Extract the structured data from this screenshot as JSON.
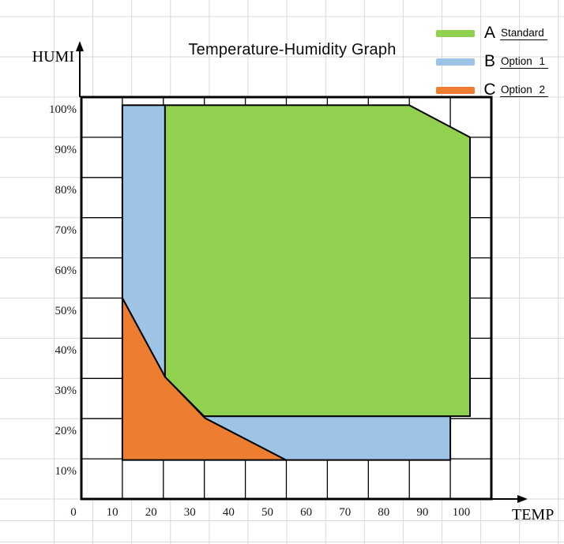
{
  "title": "Temperature-Humidity Graph",
  "axes": {
    "y_axis_name": "HUMI",
    "x_axis_name": "TEMP",
    "y_ticks": [
      "100%",
      "90%",
      "80%",
      "70%",
      "60%",
      "50%",
      "40%",
      "30%",
      "20%",
      "10%"
    ],
    "x_ticks": [
      "0",
      "10",
      "20",
      "30",
      "40",
      "50",
      "60",
      "70",
      "80",
      "90",
      "100"
    ]
  },
  "legend": {
    "items": [
      {
        "key": "A",
        "label": "Standard",
        "color": "#92D050"
      },
      {
        "key": "B",
        "label": "Option 1",
        "color": "#9DC3E6"
      },
      {
        "key": "C",
        "label": "Option 2",
        "color": "#ED7D31"
      }
    ]
  },
  "colors": {
    "region_a": "#92D050",
    "region_b": "#9DC3E6",
    "region_c": "#ED7D31",
    "grid_black": "#000000",
    "sheet_grid_gray": "#d9d9d9",
    "background": "#ffffff"
  },
  "chart_data": {
    "type": "area",
    "title": "Temperature-Humidity Graph",
    "xlabel": "TEMP",
    "ylabel": "HUMI",
    "xlim": [
      0,
      100
    ],
    "ylim": [
      0,
      100
    ],
    "x_tick_step": 10,
    "y_tick_step": 10,
    "y_tick_format": "percent",
    "grid": true,
    "legend_position": "top-right",
    "regions": [
      {
        "name": "B Option 1",
        "legend_key": "B",
        "color": "#9DC3E6",
        "polygons": [
          [
            [
              10,
              98
            ],
            [
              20.4,
              98
            ],
            [
              20.4,
              30.4
            ],
            [
              10,
              50
            ]
          ],
          [
            [
              20.4,
              30.4
            ],
            [
              29.9,
              20.6
            ],
            [
              90,
              20.6
            ],
            [
              90,
              9.7
            ],
            [
              49.9,
              9.7
            ],
            [
              30.2,
              20.1
            ]
          ]
        ]
      },
      {
        "name": "C Option 2",
        "legend_key": "C",
        "color": "#ED7D31",
        "polygons": [
          [
            [
              10,
              50
            ],
            [
              20.4,
              30.4
            ],
            [
              30.2,
              20.1
            ],
            [
              49.9,
              9.7
            ],
            [
              10,
              9.7
            ]
          ]
        ]
      },
      {
        "name": "A Standard",
        "legend_key": "A",
        "color": "#92D050",
        "polygons": [
          [
            [
              20.4,
              98
            ],
            [
              80,
              98
            ],
            [
              94.8,
              90
            ],
            [
              94.8,
              20.6
            ],
            [
              29.9,
              20.6
            ],
            [
              20.4,
              30.4
            ]
          ]
        ]
      }
    ]
  }
}
